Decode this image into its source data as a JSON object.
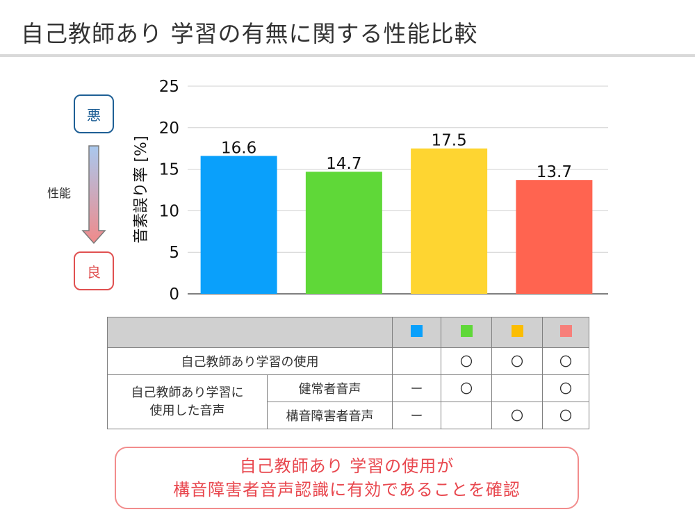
{
  "title": "自己教師あり 学習の有無に関する性能比較",
  "scale": {
    "bad_label": "悪",
    "good_label": "良",
    "axis_label": "性能"
  },
  "chart_data": {
    "type": "bar",
    "categories": [
      "",
      "",
      "",
      ""
    ],
    "values": [
      16.6,
      14.7,
      17.5,
      13.7
    ],
    "colors": [
      "#0aa0fb",
      "#5fd838",
      "#fed531",
      "#ff6450"
    ],
    "ylabel": "音素誤り率 [%]",
    "ylim": [
      0,
      25
    ],
    "yticks": [
      0,
      5,
      10,
      15,
      20,
      25
    ],
    "grid": true
  },
  "table": {
    "swatch_colors": [
      "#0aa0fb",
      "#5fd838",
      "#fbbd02",
      "#f77f7a"
    ],
    "rows": [
      {
        "label": "自己教師あり学習の使用",
        "marks": [
          "",
          "〇",
          "〇",
          "〇"
        ]
      },
      {
        "group_label_1": "自己教師あり学習に",
        "group_label_2": "使用した音声",
        "label": "健常者音声",
        "marks": [
          "ー",
          "〇",
          "",
          "〇"
        ]
      },
      {
        "label": "構音障害者音声",
        "marks": [
          "ー",
          "",
          "〇",
          "〇"
        ]
      }
    ]
  },
  "note": {
    "line1": "自己教師あり 学習の使用が",
    "line2": "構音障害者音声認識に有効であることを確認"
  }
}
